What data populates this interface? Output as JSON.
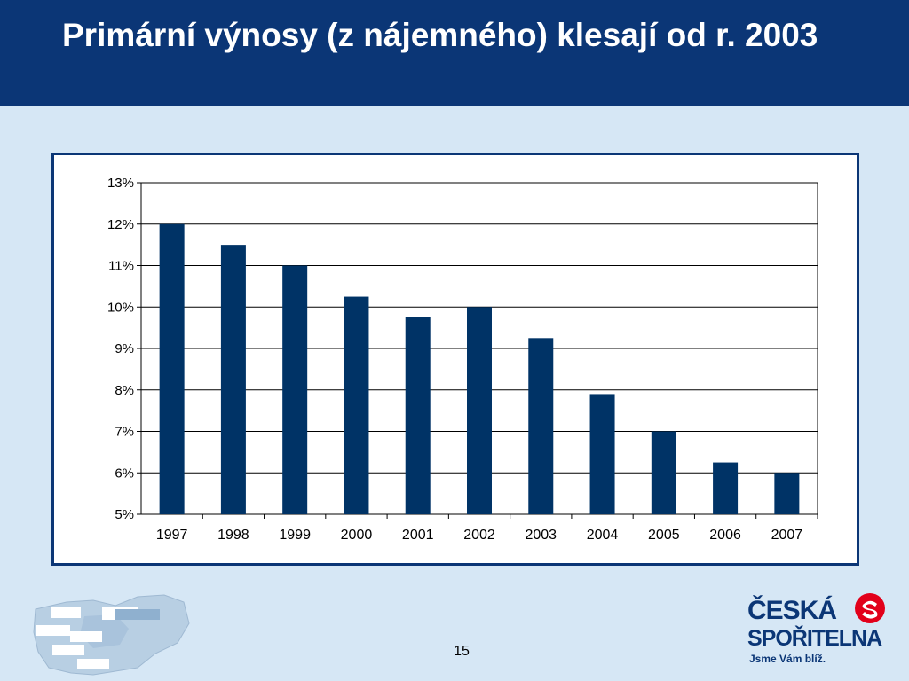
{
  "slide": {
    "title": "Primární výnosy (z nájemného) klesají od r. 2003",
    "page_number": "15"
  },
  "logo": {
    "line1": "ČESKÁ",
    "line2": "SPOŘITELNA",
    "slogan": "Jsme Vám blíž."
  },
  "colors": {
    "header": "#0b3676",
    "background": "#d6e7f5",
    "bar": "#003366"
  },
  "chart_data": {
    "type": "bar",
    "categories": [
      "1997",
      "1998",
      "1999",
      "2000",
      "2001",
      "2002",
      "2003",
      "2004",
      "2005",
      "2006",
      "2007"
    ],
    "values": [
      12.0,
      11.5,
      11.0,
      10.25,
      9.75,
      10.0,
      9.25,
      7.9,
      7.0,
      6.25,
      6.0
    ],
    "yticks": [
      "5%",
      "6%",
      "7%",
      "8%",
      "9%",
      "10%",
      "11%",
      "12%",
      "13%"
    ],
    "ylim": [
      5,
      13
    ],
    "grid": true,
    "legend": "none"
  }
}
